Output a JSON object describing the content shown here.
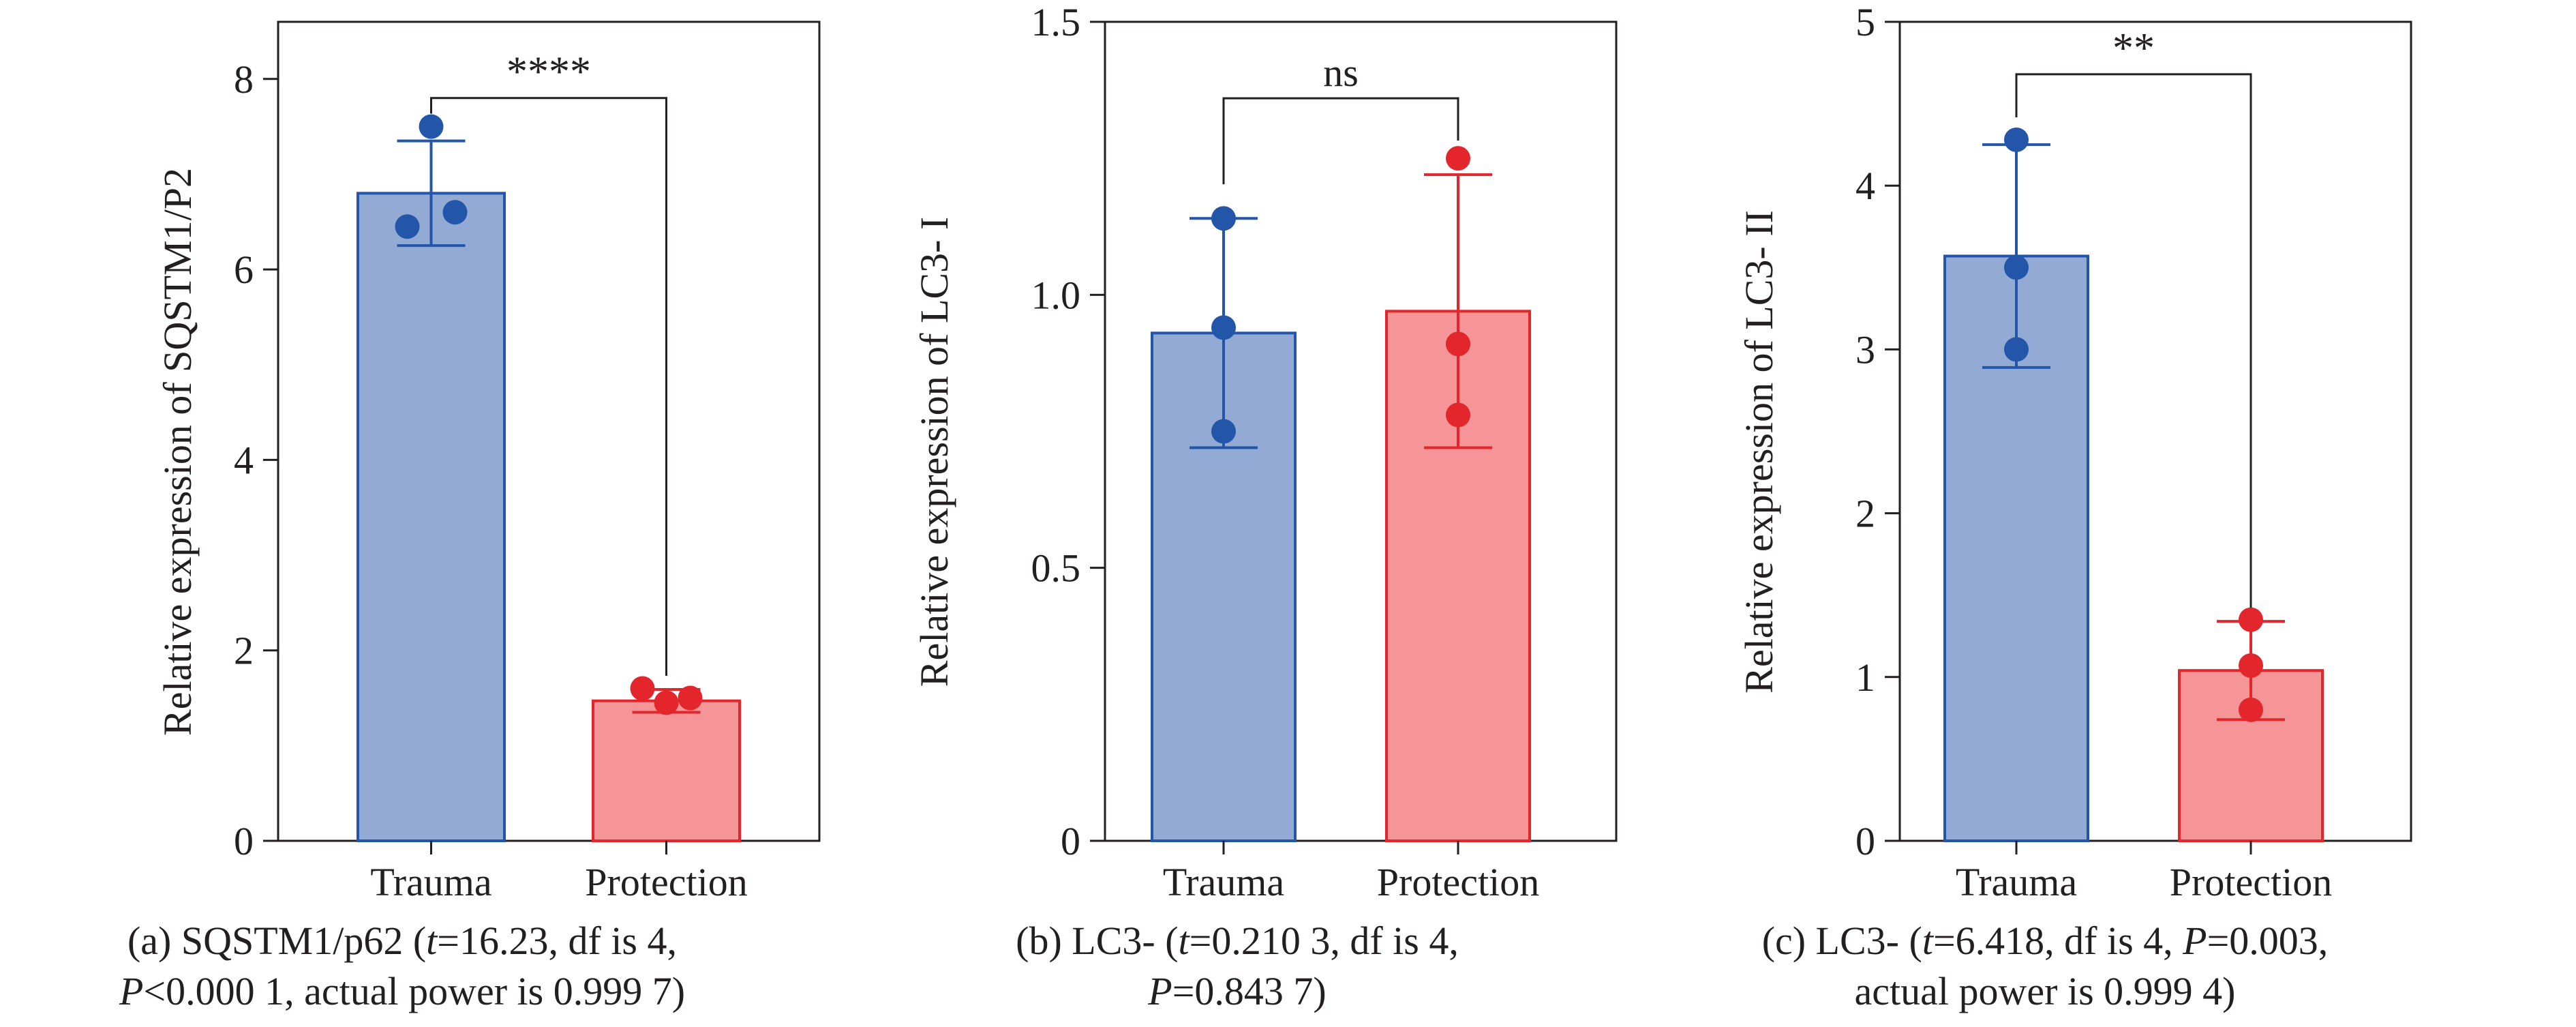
{
  "colors": {
    "trauma_fill": "#93abd4",
    "trauma_line": "#2356a8",
    "protection_fill": "#f59597",
    "protection_line": "#e3262c",
    "axis": "#231f20"
  },
  "captions": [
    {
      "line1_pre": "(a) SQSTM1/p62 (",
      "line1_stat_var": "t",
      "line1_post": "=16.23, df is 4,",
      "line2_pvar": "P",
      "line2_post": "<0.000 1, actual power is 0.999 7)"
    },
    {
      "line1_pre": "(b) LC3- (",
      "line1_stat_var": "t",
      "line1_post": "=0.210 3, df is 4,",
      "line2_pvar": "P",
      "line2_post": "=0.843 7)"
    },
    {
      "line1_pre": "(c) LC3- (",
      "line1_stat_var": "t",
      "line1_post": "=6.418, df is 4, ",
      "line1_pvar": "P",
      "line1_post2": "=0.003,",
      "line2_text": "actual power is 0.999 4)"
    }
  ],
  "chart_data": [
    {
      "type": "bar",
      "ylabel": "Relative expression of SQSTM1/P2",
      "categories": [
        "Trauma",
        "Protection"
      ],
      "ylim": [
        0,
        8.6
      ],
      "yticks": [
        0,
        2,
        4,
        6,
        8
      ],
      "ytick_labels": [
        "0",
        "2",
        "4",
        "6",
        "8"
      ],
      "series": [
        {
          "values": [
            6.8,
            1.47
          ],
          "error": [
            0.55,
            0.12
          ],
          "points": [
            [
              7.5,
              6.45,
              6.6
            ],
            [
              1.45,
              1.6,
              1.5
            ]
          ]
        }
      ],
      "significance": "****"
    },
    {
      "type": "bar",
      "ylabel": "Relative expression of LC3- I",
      "categories": [
        "Trauma",
        "Protection"
      ],
      "ylim": [
        0,
        1.5
      ],
      "yticks": [
        0,
        0.5,
        1.0,
        1.5
      ],
      "ytick_labels": [
        "0",
        "0.5",
        "1.0",
        "1.5"
      ],
      "series": [
        {
          "values": [
            0.93,
            0.97
          ],
          "error": [
            0.21,
            0.25
          ],
          "points": [
            [
              1.14,
              0.94,
              0.75
            ],
            [
              1.25,
              0.91,
              0.78
            ]
          ]
        }
      ],
      "significance": "ns"
    },
    {
      "type": "bar",
      "ylabel": "Relative expression of LC3- II",
      "categories": [
        "Trauma",
        "Protection"
      ],
      "ylim": [
        0,
        5
      ],
      "yticks": [
        0,
        1,
        2,
        3,
        4,
        5
      ],
      "ytick_labels": [
        "0",
        "1",
        "2",
        "3",
        "4",
        "5"
      ],
      "series": [
        {
          "values": [
            3.57,
            1.04
          ],
          "error": [
            0.68,
            0.3
          ],
          "points": [
            [
              4.28,
              3.5,
              3.0
            ],
            [
              1.35,
              1.07,
              0.8
            ]
          ]
        }
      ],
      "significance": "**"
    }
  ]
}
